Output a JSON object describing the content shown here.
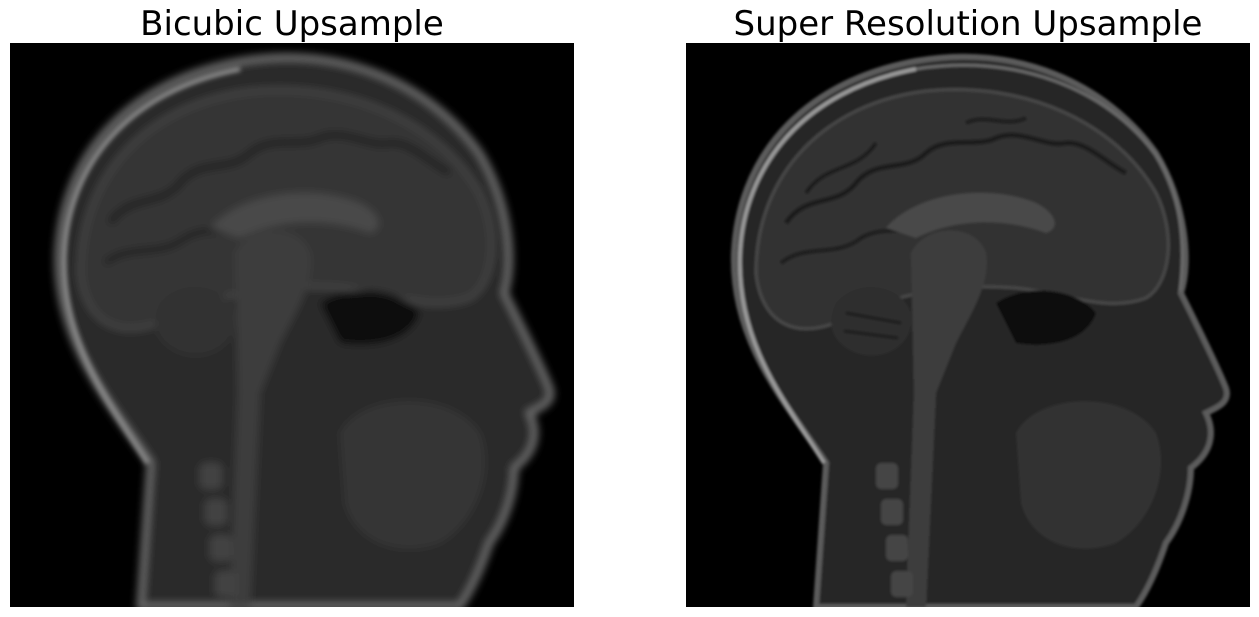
{
  "panels": [
    {
      "title": "Bicubic Upsample",
      "image": "sagittal-brain-mri-blurred-icon"
    },
    {
      "title": "Super Resolution Upsample",
      "image": "sagittal-brain-mri-sharp-icon"
    }
  ],
  "colors": {
    "background": "#ffffff",
    "image_background": "#000000",
    "tissue_dark": "#2b2b2b",
    "tissue_mid": "#3e3e3e",
    "tissue_bright": "#8a8a8a"
  }
}
